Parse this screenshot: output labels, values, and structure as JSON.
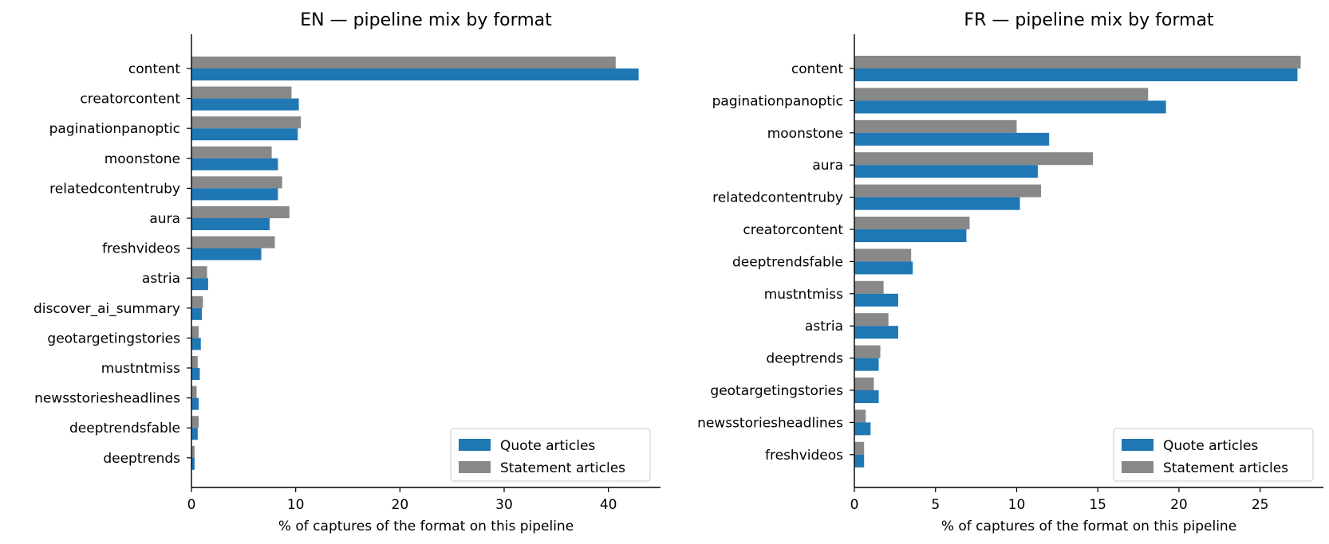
{
  "chart_data": [
    {
      "type": "bar",
      "orientation": "horizontal",
      "title": "EN — pipeline mix by format",
      "xlabel": "% of captures of the format on this pipeline",
      "ylabel": "",
      "xlim": [
        0,
        45
      ],
      "xticks": [
        0,
        10,
        20,
        30,
        40
      ],
      "categories": [
        "content",
        "creatorcontent",
        "paginationpanoptic",
        "moonstone",
        "relatedcontentruby",
        "aura",
        "freshvideos",
        "astria",
        "discover_ai_summary",
        "geotargetingstories",
        "mustntmiss",
        "newsstoriesheadlines",
        "deeptrendsfable",
        "deeptrends"
      ],
      "series": [
        {
          "name": "Quote articles",
          "color": "#1f77b4",
          "values": [
            42.9,
            10.3,
            10.2,
            8.3,
            8.3,
            7.5,
            6.7,
            1.6,
            1.0,
            0.9,
            0.8,
            0.7,
            0.6,
            0.3
          ]
        },
        {
          "name": "Statement articles",
          "color": "#888888",
          "values": [
            40.7,
            9.6,
            10.5,
            7.7,
            8.7,
            9.4,
            8.0,
            1.5,
            1.1,
            0.7,
            0.6,
            0.5,
            0.7,
            0.3
          ]
        }
      ],
      "legend": "bottom-right",
      "grid": false
    },
    {
      "type": "bar",
      "orientation": "horizontal",
      "title": "FR — pipeline mix by format",
      "xlabel": "% of captures of the format on this pipeline",
      "ylabel": "",
      "xlim": [
        0,
        28.9
      ],
      "xticks": [
        0,
        5,
        10,
        15,
        20,
        25
      ],
      "categories": [
        "content",
        "paginationpanoptic",
        "moonstone",
        "aura",
        "relatedcontentruby",
        "creatorcontent",
        "deeptrendsfable",
        "mustntmiss",
        "astria",
        "deeptrends",
        "geotargetingstories",
        "newsstoriesheadlines",
        "freshvideos"
      ],
      "series": [
        {
          "name": "Quote articles",
          "color": "#1f77b4",
          "values": [
            27.3,
            19.2,
            12.0,
            11.3,
            10.2,
            6.9,
            3.6,
            2.7,
            2.7,
            1.5,
            1.5,
            1.0,
            0.6
          ]
        },
        {
          "name": "Statement articles",
          "color": "#888888",
          "values": [
            27.5,
            18.1,
            10.0,
            14.7,
            11.5,
            7.1,
            3.5,
            1.8,
            2.1,
            1.6,
            1.2,
            0.7,
            0.6
          ]
        }
      ],
      "legend": "bottom-right",
      "grid": false
    }
  ]
}
